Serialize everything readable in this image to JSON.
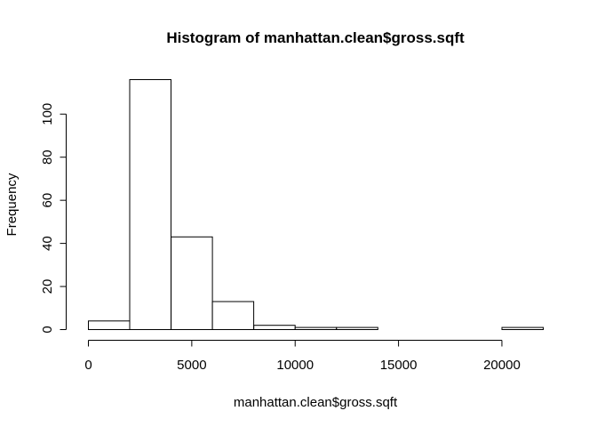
{
  "chart_data": {
    "type": "bar",
    "title": "Histogram of manhattan.clean$gross.sqft",
    "xlabel": "manhattan.clean$gross.sqft",
    "ylabel": "Frequency",
    "bins": [
      {
        "start": 0,
        "end": 2000,
        "count": 4
      },
      {
        "start": 2000,
        "end": 4000,
        "count": 116
      },
      {
        "start": 4000,
        "end": 6000,
        "count": 43
      },
      {
        "start": 6000,
        "end": 8000,
        "count": 13
      },
      {
        "start": 8000,
        "end": 10000,
        "count": 2
      },
      {
        "start": 10000,
        "end": 12000,
        "count": 1
      },
      {
        "start": 12000,
        "end": 14000,
        "count": 1
      },
      {
        "start": 14000,
        "end": 16000,
        "count": 0
      },
      {
        "start": 16000,
        "end": 18000,
        "count": 0
      },
      {
        "start": 18000,
        "end": 20000,
        "count": 0
      },
      {
        "start": 20000,
        "end": 22000,
        "count": 1
      }
    ],
    "xlim": [
      0,
      22000
    ],
    "ylim": [
      0,
      116
    ],
    "xticks": [
      0,
      5000,
      10000,
      15000,
      20000
    ],
    "yticks": [
      0,
      20,
      40,
      60,
      80,
      100
    ],
    "grid": false,
    "legend": "none"
  }
}
